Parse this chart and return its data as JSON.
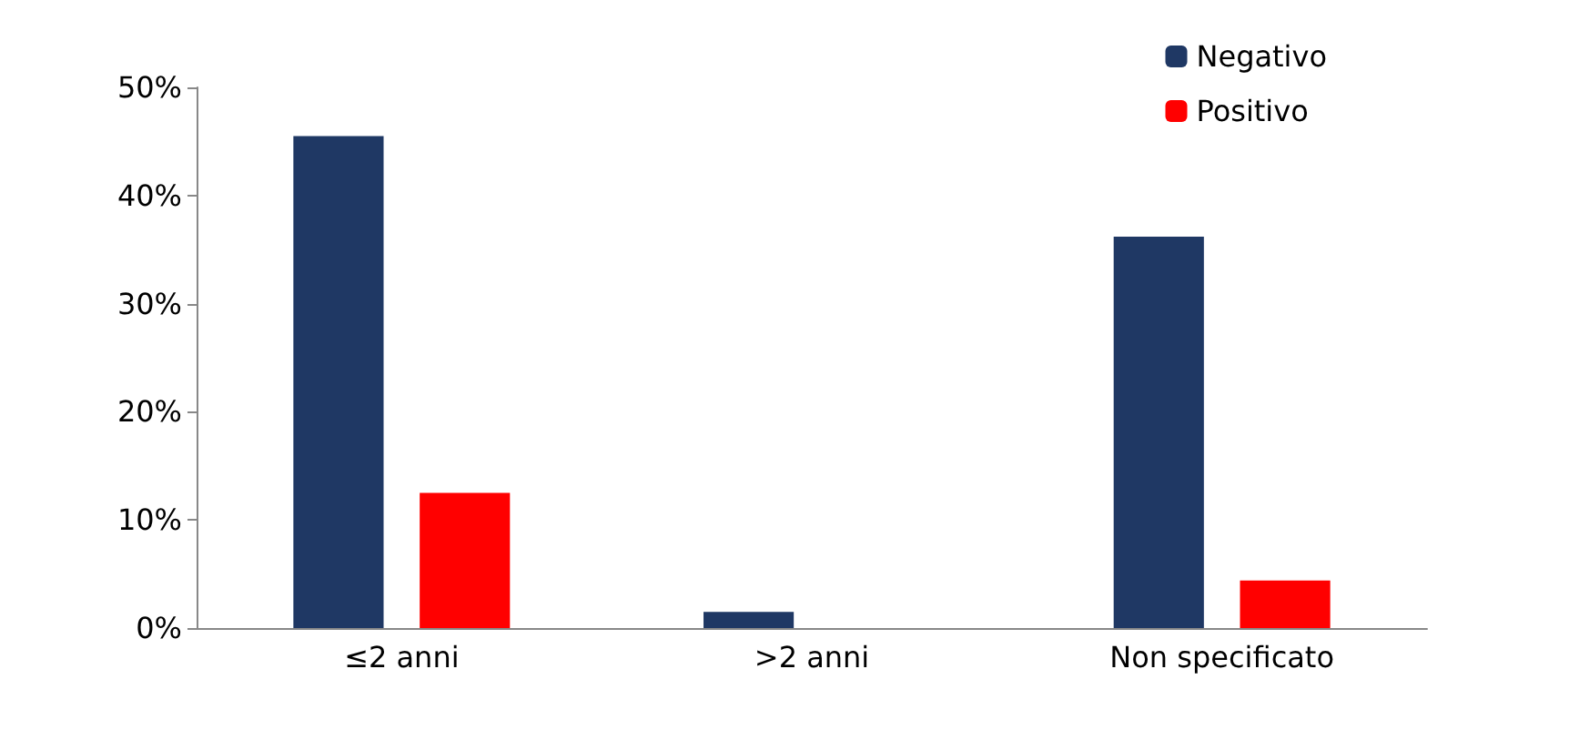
{
  "chart_data": {
    "type": "bar",
    "categories": [
      "≤2 anni",
      ">2 anni",
      "Non specificato"
    ],
    "series": [
      {
        "name": "Negativo",
        "color": "#1f3864",
        "values": [
          45.5,
          1.5,
          36.2
        ]
      },
      {
        "name": "Positivo",
        "color": "#ff0000",
        "values": [
          12.5,
          null,
          4.4
        ]
      }
    ],
    "ylim": [
      0,
      50
    ],
    "yticks": [
      {
        "value": 0,
        "label": "0%"
      },
      {
        "value": 10,
        "label": "10%"
      },
      {
        "value": 20,
        "label": "20%"
      },
      {
        "value": 30,
        "label": "30%"
      },
      {
        "value": 40,
        "label": "40%"
      },
      {
        "value": 50,
        "label": "50%"
      }
    ],
    "grid": false,
    "legend": "top right"
  }
}
